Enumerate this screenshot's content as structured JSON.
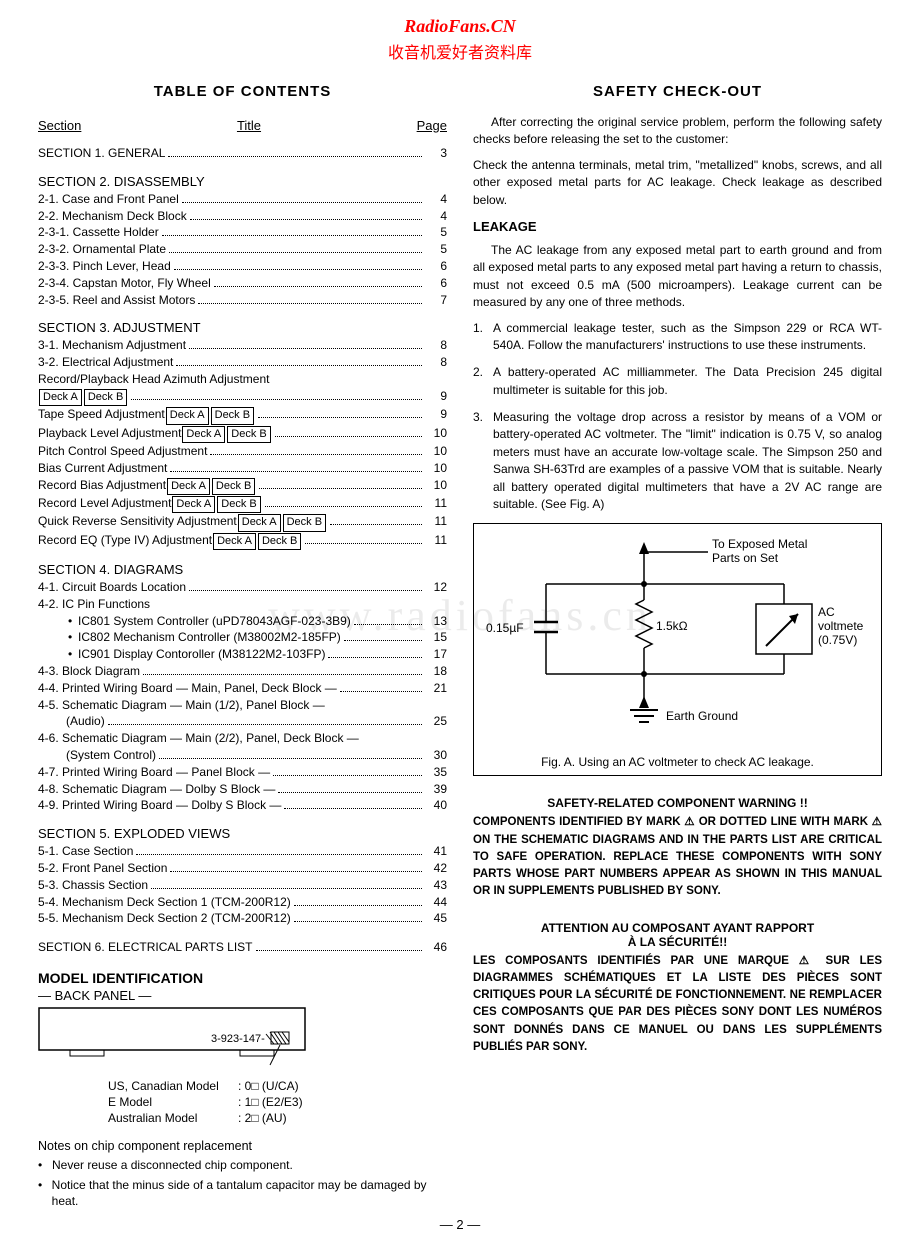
{
  "header": {
    "url": "RadioFans.CN",
    "cn": "收音机爱好者资料库"
  },
  "watermark": "www.radiofans.cn",
  "page_num": "— 2 —",
  "toc": {
    "title": "TABLE  OF  CONTENTS",
    "cols": {
      "section": "Section",
      "title": "Title",
      "page": "Page"
    },
    "sections": [
      {
        "head": "SECTION 1. GENERAL",
        "pagehead": "3",
        "rows": []
      },
      {
        "head": "SECTION 2. DISASSEMBLY",
        "rows": [
          {
            "label": "2-1.   Case and Front Panel",
            "page": "4"
          },
          {
            "label": "2-2.   Mechanism Deck Block",
            "page": "4"
          },
          {
            "label": "2-3-1. Cassette Holder",
            "page": "5"
          },
          {
            "label": "2-3-2. Ornamental Plate",
            "page": "5"
          },
          {
            "label": "2-3-3. Pinch Lever, Head",
            "page": "6"
          },
          {
            "label": "2-3-4. Capstan Motor, Fly Wheel",
            "page": "6"
          },
          {
            "label": "2-3-5. Reel and Assist Motors",
            "page": "7"
          }
        ]
      },
      {
        "head": "SECTION 3. ADJUSTMENT",
        "rows": [
          {
            "label": "3-1.   Mechanism Adjustment",
            "page": "8"
          },
          {
            "label": "3-2.   Electrical Adjustment",
            "page": "8"
          },
          {
            "label": "Record/Playback Head Azimuth Adjustment",
            "nodots": true
          },
          {
            "decks": [
              "Deck A",
              "Deck B"
            ],
            "page": "9"
          },
          {
            "label": "Tape Speed Adjustment",
            "decks_after": [
              "Deck A",
              "Deck B"
            ],
            "page": "9"
          },
          {
            "label": "Playback Level Adjustment",
            "decks_after": [
              "Deck A",
              "Deck B"
            ],
            "page": "10"
          },
          {
            "label": "Pitch Control Speed Adjustment",
            "page": "10"
          },
          {
            "label": "Bias Current Adjustment",
            "page": "10"
          },
          {
            "label": "Record Bias Adjustment",
            "decks_after": [
              "Deck A",
              "Deck B"
            ],
            "page": "10"
          },
          {
            "label": "Record Level Adjustment",
            "decks_after": [
              "Deck A",
              "Deck B"
            ],
            "page": "11"
          },
          {
            "label": "Quick Reverse Sensitivity Adjustment",
            "decks_after": [
              "Deck A",
              "Deck B"
            ],
            "page": "11"
          },
          {
            "label": "Record EQ (Type IV) Adjustment",
            "decks_after": [
              "Deck A",
              "Deck B"
            ],
            "page": "11"
          }
        ]
      },
      {
        "head": "SECTION 4. DIAGRAMS",
        "rows": [
          {
            "label": "4-1.   Circuit Boards Location",
            "page": "12"
          },
          {
            "label": "4-2.   IC Pin Functions",
            "nodots": true
          },
          {
            "bullet": true,
            "label": "IC801 System Controller (uPD78043AGF-023-3B9)",
            "page": "13"
          },
          {
            "bullet": true,
            "label": "IC802 Mechanism Controller (M38002M2-185FP)",
            "page": "15"
          },
          {
            "bullet": true,
            "label": "IC901 Display Contoroller (M38122M2-103FP)",
            "page": "17"
          },
          {
            "label": "4-3.   Block Diagram",
            "page": "18"
          },
          {
            "label": "4-4.   Printed Wiring Board — Main, Panel, Deck Block —",
            "page": "21"
          },
          {
            "label": "4-5.   Schematic Diagram — Main (1/2), Panel Block —",
            "nodots": true
          },
          {
            "indent": true,
            "label": "(Audio)",
            "page": "25"
          },
          {
            "label": "4-6.   Schematic Diagram — Main (2/2), Panel, Deck Block —",
            "nodots": true
          },
          {
            "indent": true,
            "label": "(System Control)",
            "page": "30"
          },
          {
            "label": "4-7.   Printed Wiring Board — Panel Block —",
            "page": "35"
          },
          {
            "label": "4-8.   Schematic Diagram — Dolby S Block —",
            "page": "39"
          },
          {
            "label": "4-9.   Printed Wiring Board — Dolby S Block —",
            "page": "40"
          }
        ]
      },
      {
        "head": "SECTION 5. EXPLODED VIEWS",
        "rows": [
          {
            "label": "5-1.   Case Section",
            "page": "41"
          },
          {
            "label": "5-2.   Front Panel Section",
            "page": "42"
          },
          {
            "label": "5-3.   Chassis Section",
            "page": "43"
          },
          {
            "label": "5-4.   Mechanism Deck Section 1 (TCM-200R12)",
            "page": "44"
          },
          {
            "label": "5-5.   Mechanism Deck Section 2 (TCM-200R12)",
            "page": "45"
          }
        ]
      },
      {
        "head": "SECTION 6. ELECTRICAL PARTS LIST",
        "pagehead": "46",
        "rows": []
      }
    ]
  },
  "model": {
    "title": "MODEL IDENTIFICATION",
    "panel_label": "— BACK PANEL —",
    "serial": "3-923-147-",
    "rows": [
      {
        "k": "US, Canadian Model",
        "v": ": 0□ (U/CA)"
      },
      {
        "k": "E Model",
        "v": ": 1□ (E2/E3)"
      },
      {
        "k": "Australian Model",
        "v": ": 2□ (AU)"
      }
    ],
    "notes_head": "Notes on chip component replacement",
    "notes": [
      "Never reuse a disconnected chip component.",
      "Notice that the minus side of a tantalum capacitor may be damaged by heat."
    ]
  },
  "right": {
    "title": "SAFETY  CHECK-OUT",
    "p1": "After correcting the original service problem, perform the following safety checks before releasing the set to the customer:",
    "p2": "Check the antenna terminals, metal trim, \"metallized\" knobs, screws, and all other exposed metal parts for AC leakage. Check leakage as described below.",
    "leakage_head": "LEAKAGE",
    "leakage_p": "The AC leakage from any exposed metal part to earth ground and from all exposed metal parts to any exposed metal part having a return to chassis, must not exceed 0.5 mA (500 microampers). Leakage current can be measured by any one of three methods.",
    "items": [
      "A commercial leakage tester, such as the Simpson 229 or RCA WT-540A. Follow the manufacturers' instructions to use these instruments.",
      "A battery-operated AC milliammeter. The Data Precision 245 digital multimeter is suitable for this job.",
      "Measuring the voltage drop across a resistor by means of a VOM or battery-operated AC voltmeter. The \"limit\" indication is 0.75 V, so analog meters must have an accurate low-voltage scale. The Simpson 250 and Sanwa SH-63Trd are examples of a passive VOM that is suitable. Nearly all battery operated digital multimeters that have a 2V AC range are suitable. (See Fig. A)"
    ],
    "fig": {
      "top_label1": "To Exposed Metal",
      "top_label2": "Parts on Set",
      "cap_val": "0.15µF",
      "res_val": "1.5kΩ",
      "meter1": "AC",
      "meter2": "voltmeter",
      "meter3": "(0.75V)",
      "gnd": "Earth Ground",
      "caption": "Fig. A. Using an AC voltmeter to check AC leakage."
    },
    "warn_en_title": "SAFETY-RELATED COMPONENT WARNING !!",
    "warn_en": "COMPONENTS IDENTIFIED BY MARK ⚠ OR DOTTED LINE WITH MARK ⚠ ON THE SCHEMATIC DIAGRAMS AND IN THE PARTS LIST ARE CRITICAL TO SAFE OPERATION. REPLACE THESE COMPONENTS WITH SONY PARTS WHOSE PART NUMBERS APPEAR AS SHOWN IN THIS MANUAL OR IN SUPPLEMENTS PUBLISHED BY SONY.",
    "warn_fr_title1": "ATTENTION AU COMPOSANT AYANT RAPPORT",
    "warn_fr_title2": "À LA SÉCURITÉ!!",
    "warn_fr": "LES COMPOSANTS IDENTIFIÉS PAR UNE MARQUE ⚠ SUR LES DIAGRAMMES SCHÉMATIQUES ET LA LISTE DES PIÈCES SONT CRITIQUES POUR LA SÉCURITÉ DE FONCTIONNEMENT. NE REMPLACER CES COMPOSANTS QUE PAR DES PIÈCES SONY DONT LES NUMÉROS SONT DONNÉS DANS CE MANUEL OU DANS LES SUPPLÉMENTS PUBLIÉS PAR SONY."
  }
}
